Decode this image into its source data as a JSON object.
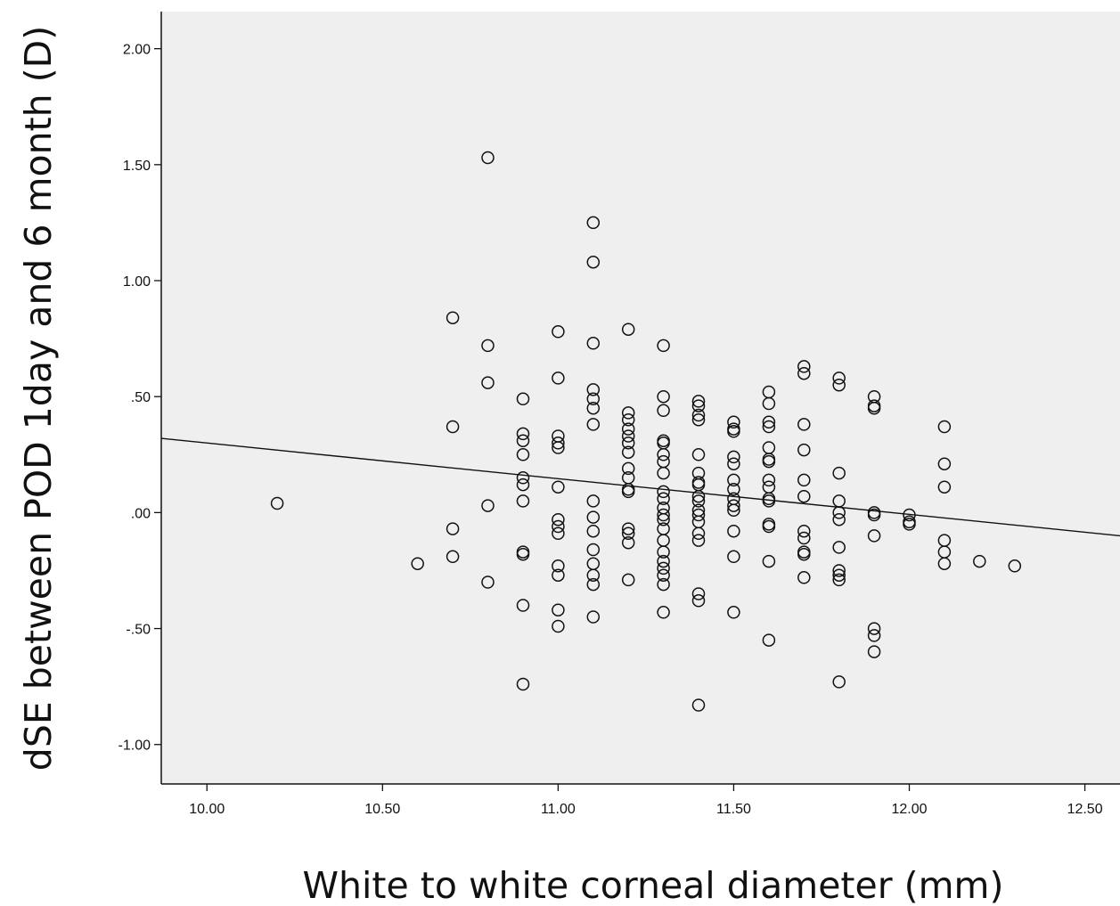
{
  "chart_data": {
    "type": "scatter",
    "title": "",
    "xlabel": "White to white corneal diameter (mm)",
    "ylabel": "dSE between POD 1day and 6 month (D)",
    "xlim": [
      9.87,
      12.6
    ],
    "ylim": [
      -1.17,
      2.16
    ],
    "xticks": [
      "10.00",
      "10.50",
      "11.00",
      "11.50",
      "12.00",
      "12.50"
    ],
    "yticks": [
      "2.00",
      "1.50",
      "1.00",
      ".50",
      ".00",
      "-.50",
      "-1.00"
    ],
    "grid": false,
    "legend": "none",
    "marker": "open-circle",
    "plot_background": "#efefef",
    "marker_color": "#111111",
    "fit_line": {
      "x": [
        9.87,
        12.6
      ],
      "y": [
        0.32,
        -0.1
      ]
    },
    "points": [
      [
        10.2,
        0.04
      ],
      [
        10.6,
        -0.22
      ],
      [
        10.7,
        0.84
      ],
      [
        10.7,
        0.37
      ],
      [
        10.7,
        -0.07
      ],
      [
        10.7,
        -0.19
      ],
      [
        10.8,
        1.53
      ],
      [
        10.8,
        0.72
      ],
      [
        10.8,
        0.56
      ],
      [
        10.8,
        0.03
      ],
      [
        10.8,
        -0.3
      ],
      [
        10.9,
        0.49
      ],
      [
        10.9,
        0.34
      ],
      [
        10.9,
        0.31
      ],
      [
        10.9,
        0.25
      ],
      [
        10.9,
        0.15
      ],
      [
        10.9,
        0.12
      ],
      [
        10.9,
        0.05
      ],
      [
        10.9,
        -0.17
      ],
      [
        10.9,
        -0.18
      ],
      [
        10.9,
        -0.4
      ],
      [
        10.9,
        -0.74
      ],
      [
        11.0,
        0.78
      ],
      [
        11.0,
        0.58
      ],
      [
        11.0,
        0.33
      ],
      [
        11.0,
        0.3
      ],
      [
        11.0,
        0.28
      ],
      [
        11.0,
        0.11
      ],
      [
        11.0,
        -0.03
      ],
      [
        11.0,
        -0.06
      ],
      [
        11.0,
        -0.09
      ],
      [
        11.0,
        -0.23
      ],
      [
        11.0,
        -0.27
      ],
      [
        11.0,
        -0.42
      ],
      [
        11.0,
        -0.49
      ],
      [
        11.1,
        1.25
      ],
      [
        11.1,
        1.08
      ],
      [
        11.1,
        0.73
      ],
      [
        11.1,
        0.53
      ],
      [
        11.1,
        0.49
      ],
      [
        11.1,
        0.45
      ],
      [
        11.1,
        0.38
      ],
      [
        11.1,
        0.05
      ],
      [
        11.1,
        -0.02
      ],
      [
        11.1,
        -0.08
      ],
      [
        11.1,
        -0.16
      ],
      [
        11.1,
        -0.22
      ],
      [
        11.1,
        -0.27
      ],
      [
        11.1,
        -0.31
      ],
      [
        11.1,
        -0.45
      ],
      [
        11.2,
        0.79
      ],
      [
        11.2,
        0.43
      ],
      [
        11.2,
        0.4
      ],
      [
        11.2,
        0.36
      ],
      [
        11.2,
        0.33
      ],
      [
        11.2,
        0.3
      ],
      [
        11.2,
        0.26
      ],
      [
        11.2,
        0.19
      ],
      [
        11.2,
        0.15
      ],
      [
        11.2,
        0.1
      ],
      [
        11.2,
        0.09
      ],
      [
        11.2,
        -0.07
      ],
      [
        11.2,
        -0.09
      ],
      [
        11.2,
        -0.13
      ],
      [
        11.2,
        -0.29
      ],
      [
        11.3,
        0.72
      ],
      [
        11.3,
        0.5
      ],
      [
        11.3,
        0.44
      ],
      [
        11.3,
        0.31
      ],
      [
        11.3,
        0.3
      ],
      [
        11.3,
        0.25
      ],
      [
        11.3,
        0.22
      ],
      [
        11.3,
        0.17
      ],
      [
        11.3,
        0.09
      ],
      [
        11.3,
        0.06
      ],
      [
        11.3,
        0.02
      ],
      [
        11.3,
        -0.01
      ],
      [
        11.3,
        -0.03
      ],
      [
        11.3,
        -0.07
      ],
      [
        11.3,
        -0.12
      ],
      [
        11.3,
        -0.17
      ],
      [
        11.3,
        -0.21
      ],
      [
        11.3,
        -0.24
      ],
      [
        11.3,
        -0.27
      ],
      [
        11.3,
        -0.31
      ],
      [
        11.3,
        -0.43
      ],
      [
        11.4,
        0.48
      ],
      [
        11.4,
        0.46
      ],
      [
        11.4,
        0.42
      ],
      [
        11.4,
        0.4
      ],
      [
        11.4,
        0.25
      ],
      [
        11.4,
        0.17
      ],
      [
        11.4,
        0.13
      ],
      [
        11.4,
        0.12
      ],
      [
        11.4,
        0.07
      ],
      [
        11.4,
        0.05
      ],
      [
        11.4,
        0.01
      ],
      [
        11.4,
        -0.01
      ],
      [
        11.4,
        -0.04
      ],
      [
        11.4,
        -0.09
      ],
      [
        11.4,
        -0.12
      ],
      [
        11.4,
        -0.35
      ],
      [
        11.4,
        -0.38
      ],
      [
        11.4,
        -0.83
      ],
      [
        11.5,
        0.39
      ],
      [
        11.5,
        0.36
      ],
      [
        11.5,
        0.35
      ],
      [
        11.5,
        0.24
      ],
      [
        11.5,
        0.21
      ],
      [
        11.5,
        0.14
      ],
      [
        11.5,
        0.1
      ],
      [
        11.5,
        0.06
      ],
      [
        11.5,
        0.03
      ],
      [
        11.5,
        0.01
      ],
      [
        11.5,
        -0.08
      ],
      [
        11.5,
        -0.19
      ],
      [
        11.5,
        -0.43
      ],
      [
        11.6,
        0.52
      ],
      [
        11.6,
        0.47
      ],
      [
        11.6,
        0.39
      ],
      [
        11.6,
        0.37
      ],
      [
        11.6,
        0.28
      ],
      [
        11.6,
        0.23
      ],
      [
        11.6,
        0.22
      ],
      [
        11.6,
        0.14
      ],
      [
        11.6,
        0.11
      ],
      [
        11.6,
        0.06
      ],
      [
        11.6,
        0.05
      ],
      [
        11.6,
        -0.05
      ],
      [
        11.6,
        -0.06
      ],
      [
        11.6,
        -0.21
      ],
      [
        11.6,
        -0.55
      ],
      [
        11.7,
        0.63
      ],
      [
        11.7,
        0.6
      ],
      [
        11.7,
        0.38
      ],
      [
        11.7,
        0.27
      ],
      [
        11.7,
        0.14
      ],
      [
        11.7,
        0.07
      ],
      [
        11.7,
        -0.08
      ],
      [
        11.7,
        -0.11
      ],
      [
        11.7,
        -0.17
      ],
      [
        11.7,
        -0.18
      ],
      [
        11.7,
        -0.28
      ],
      [
        11.8,
        0.58
      ],
      [
        11.8,
        0.55
      ],
      [
        11.8,
        0.17
      ],
      [
        11.8,
        0.05
      ],
      [
        11.8,
        0.0
      ],
      [
        11.8,
        -0.03
      ],
      [
        11.8,
        -0.15
      ],
      [
        11.8,
        -0.25
      ],
      [
        11.8,
        -0.27
      ],
      [
        11.8,
        -0.29
      ],
      [
        11.8,
        -0.73
      ],
      [
        11.9,
        0.5
      ],
      [
        11.9,
        0.46
      ],
      [
        11.9,
        0.45
      ],
      [
        11.9,
        0.0
      ],
      [
        11.9,
        -0.01
      ],
      [
        11.9,
        -0.1
      ],
      [
        11.9,
        -0.5
      ],
      [
        11.9,
        -0.53
      ],
      [
        11.9,
        -0.6
      ],
      [
        12.0,
        -0.01
      ],
      [
        12.0,
        -0.04
      ],
      [
        12.0,
        -0.05
      ],
      [
        12.1,
        0.37
      ],
      [
        12.1,
        0.21
      ],
      [
        12.1,
        0.11
      ],
      [
        12.1,
        -0.12
      ],
      [
        12.1,
        -0.17
      ],
      [
        12.1,
        -0.22
      ],
      [
        12.2,
        -0.21
      ],
      [
        12.3,
        -0.23
      ]
    ]
  }
}
